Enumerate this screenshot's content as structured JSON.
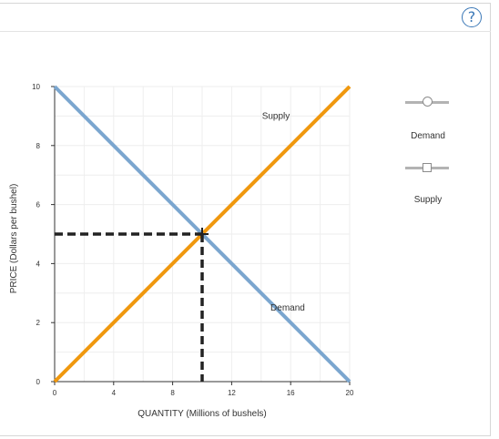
{
  "help": {
    "label": "?"
  },
  "legend": {
    "items": [
      {
        "label": "Demand",
        "marker": "circle",
        "color": "#b3b3b3"
      },
      {
        "label": "Supply",
        "marker": "square",
        "color": "#b3b3b3"
      }
    ]
  },
  "chart_data": {
    "type": "line",
    "xlabel": "QUANTITY (Millions of bushels)",
    "ylabel": "PRICE (Dollars per bushel)",
    "xlim": [
      0,
      20
    ],
    "ylim": [
      0,
      10
    ],
    "xticks": [
      0,
      4,
      8,
      12,
      16,
      20
    ],
    "yticks": [
      0,
      2,
      4,
      6,
      8,
      10
    ],
    "grid": true,
    "series": [
      {
        "name": "Supply",
        "color": "#f0980e",
        "points": [
          [
            0,
            0
          ],
          [
            20,
            10
          ]
        ]
      },
      {
        "name": "Demand",
        "color": "#7ba6cf",
        "points": [
          [
            0,
            10
          ],
          [
            20,
            0
          ]
        ]
      }
    ],
    "equilibrium": {
      "x": 10,
      "y": 5
    }
  }
}
